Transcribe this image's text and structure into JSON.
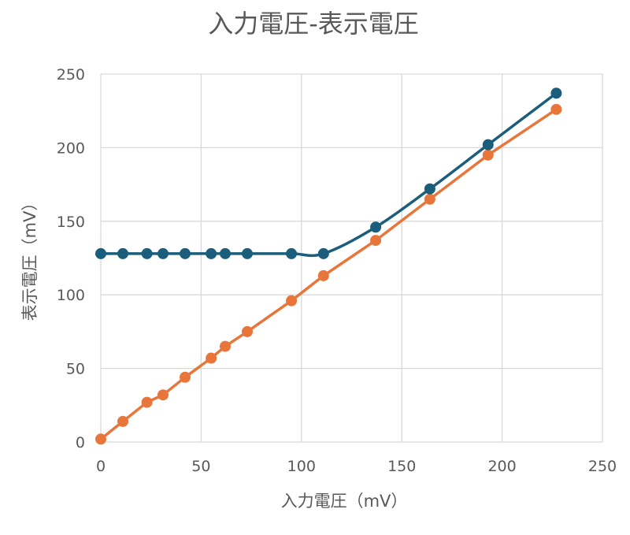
{
  "chart_data": {
    "type": "scatter",
    "title": "入力電圧-表示電圧",
    "xlabel": "入力電圧（mV）",
    "ylabel": "表示電圧（mV）",
    "xlim": [
      0,
      250
    ],
    "ylim": [
      0,
      250
    ],
    "xticks": [
      0,
      50,
      100,
      150,
      200,
      250
    ],
    "yticks": [
      0,
      50,
      100,
      150,
      200,
      250
    ],
    "grid": true,
    "legend": "none",
    "series": [
      {
        "color": "#1b5e7b",
        "smooth": true,
        "points": [
          [
            0,
            128
          ],
          [
            11,
            128
          ],
          [
            23,
            128
          ],
          [
            31,
            128
          ],
          [
            42,
            128
          ],
          [
            55,
            128
          ],
          [
            62,
            128
          ],
          [
            73,
            128
          ],
          [
            95,
            128
          ],
          [
            111,
            128
          ],
          [
            137,
            146
          ],
          [
            164,
            172
          ],
          [
            193,
            202
          ],
          [
            227,
            237
          ]
        ]
      },
      {
        "color": "#e8763a",
        "smooth": false,
        "points": [
          [
            0,
            2
          ],
          [
            11,
            14
          ],
          [
            23,
            27
          ],
          [
            31,
            32
          ],
          [
            42,
            44
          ],
          [
            55,
            57
          ],
          [
            62,
            65
          ],
          [
            73,
            75
          ],
          [
            95,
            96
          ],
          [
            111,
            113
          ],
          [
            137,
            137
          ],
          [
            164,
            165
          ],
          [
            193,
            195
          ],
          [
            227,
            226
          ]
        ]
      }
    ]
  }
}
